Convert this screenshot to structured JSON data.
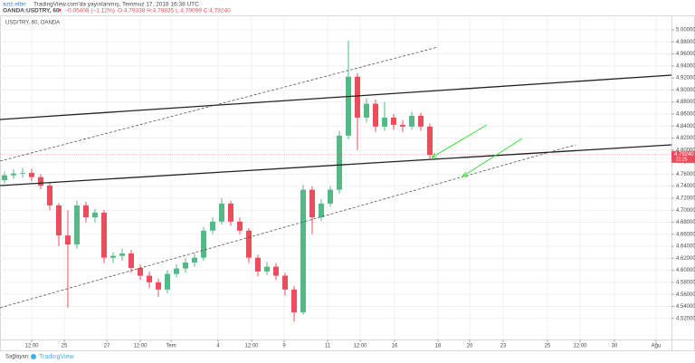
{
  "header": {
    "author": "aziz.elbir",
    "published": "TradingView.com'da yayınlanmış, Temmuz 17, 2018 16:38 UTC",
    "symbol": "OANDA:USDTRY, 60",
    "change": "▼ −0.05408 (−1.12%)",
    "ohlc": "O:4.79338 H:4.79835 L:4.79099 C:4.79240"
  },
  "footer": {
    "provider": "Sağlayan:",
    "brand": "TradingView"
  },
  "chart_data": {
    "type": "candlestick",
    "title": "USD/TRY, 60, OANDA",
    "up_color": "#53b987",
    "down_color": "#eb4d5c",
    "grid": true,
    "x": [
      0.5,
      1.5,
      2.5,
      3.5,
      4.5,
      5.5,
      6.5,
      7.5,
      8.5,
      9.5,
      10.5,
      11.5,
      12.5,
      13.5,
      14.5,
      15.5,
      16.5,
      17.5,
      18.5,
      19.5,
      20.5,
      21.5,
      22.5,
      23.5,
      24.5,
      25.5,
      26.5,
      27.5,
      28.5,
      29.5,
      30.5,
      31.5,
      32.5,
      33.5,
      34.5,
      35.5,
      36.5,
      37.5,
      38.5,
      39.5,
      40.5,
      41.5,
      42.5,
      43.5,
      44.5,
      45.5,
      46.5,
      47.5
    ],
    "open": [
      4.75,
      4.758,
      4.761,
      4.762,
      4.755,
      4.741,
      4.708,
      4.658,
      4.643,
      4.708,
      4.688,
      4.696,
      4.621,
      4.624,
      4.628,
      4.604,
      4.591,
      4.58,
      4.568,
      4.594,
      4.603,
      4.613,
      4.621,
      4.666,
      4.681,
      4.711,
      4.681,
      4.666,
      4.621,
      4.598,
      4.606,
      4.591,
      4.568,
      4.53,
      4.734,
      4.688,
      4.711,
      4.734,
      4.824,
      4.922,
      4.854,
      4.877,
      4.839,
      4.854,
      4.842,
      4.839,
      4.857,
      4.839
    ],
    "high": [
      4.764,
      4.768,
      4.77,
      4.769,
      4.76,
      4.746,
      4.712,
      4.7,
      4.716,
      4.714,
      4.702,
      4.7,
      4.63,
      4.636,
      4.634,
      4.61,
      4.598,
      4.586,
      4.6,
      4.61,
      4.62,
      4.628,
      4.672,
      4.688,
      4.72,
      4.716,
      4.688,
      4.67,
      4.626,
      4.614,
      4.612,
      4.596,
      4.574,
      4.742,
      4.74,
      4.718,
      4.74,
      4.832,
      4.982,
      4.928,
      4.886,
      4.884,
      4.88,
      4.86,
      4.85,
      4.864,
      4.862,
      4.844
    ],
    "low": [
      4.744,
      4.752,
      4.754,
      4.748,
      4.735,
      4.7,
      4.64,
      4.538,
      4.636,
      4.68,
      4.68,
      4.612,
      4.612,
      4.616,
      4.596,
      4.584,
      4.57,
      4.556,
      4.562,
      4.588,
      4.596,
      4.606,
      4.616,
      4.66,
      4.676,
      4.674,
      4.66,
      4.612,
      4.59,
      4.592,
      4.584,
      4.558,
      4.515,
      4.526,
      4.66,
      4.682,
      4.706,
      4.728,
      4.818,
      4.8,
      4.846,
      4.83,
      4.832,
      4.834,
      4.83,
      4.834,
      4.832,
      4.786
    ],
    "close": [
      4.758,
      4.761,
      4.762,
      4.755,
      4.741,
      4.708,
      4.658,
      4.643,
      4.708,
      4.688,
      4.696,
      4.621,
      4.624,
      4.628,
      4.604,
      4.591,
      4.58,
      4.568,
      4.594,
      4.603,
      4.613,
      4.621,
      4.666,
      4.681,
      4.711,
      4.681,
      4.666,
      4.621,
      4.598,
      4.606,
      4.591,
      4.568,
      4.53,
      4.734,
      4.688,
      4.711,
      4.734,
      4.824,
      4.922,
      4.854,
      4.877,
      4.839,
      4.854,
      4.842,
      4.839,
      4.857,
      4.839,
      4.792
    ],
    "last_price": {
      "value": 4.7924,
      "label": "4.79240"
    },
    "countdown": "21:25",
    "xlim": [
      0,
      74.2
    ],
    "xticks": [
      {
        "value": 3.5,
        "label": "12:00"
      },
      {
        "value": 7.1,
        "label": "25"
      },
      {
        "value": 11.8,
        "label": "27"
      },
      {
        "value": 15.5,
        "label": "12:00"
      },
      {
        "value": 18.9,
        "label": "Tem"
      },
      {
        "value": 24.1,
        "label": "4"
      },
      {
        "value": 27.8,
        "label": "12:00"
      },
      {
        "value": 31.4,
        "label": "9"
      },
      {
        "value": 36.2,
        "label": "11"
      },
      {
        "value": 39.8,
        "label": "12:00"
      },
      {
        "value": 43.6,
        "label": "16"
      },
      {
        "value": 48.4,
        "label": "18"
      },
      {
        "value": 51.9,
        "label": "20"
      },
      {
        "value": 55.6,
        "label": "23"
      },
      {
        "value": 60.5,
        "label": "25"
      },
      {
        "value": 64.1,
        "label": "12:00"
      },
      {
        "value": 67.9,
        "label": "30"
      },
      {
        "value": 72.5,
        "label": "Ağu"
      }
    ],
    "ylim": [
      4.485,
      5.024
    ],
    "yticks": [
      {
        "value": 4.52,
        "label": "4.52000"
      },
      {
        "value": 4.54,
        "label": "4.54000"
      },
      {
        "value": 4.56,
        "label": "4.56000"
      },
      {
        "value": 4.58,
        "label": "4.58000"
      },
      {
        "value": 4.6,
        "label": "4.60000"
      },
      {
        "value": 4.62,
        "label": "4.62000"
      },
      {
        "value": 4.64,
        "label": "4.64000"
      },
      {
        "value": 4.66,
        "label": "4.66000"
      },
      {
        "value": 4.68,
        "label": "4.68000"
      },
      {
        "value": 4.7,
        "label": "4.70000"
      },
      {
        "value": 4.72,
        "label": "4.72000"
      },
      {
        "value": 4.74,
        "label": "4.74000"
      },
      {
        "value": 4.76,
        "label": "4.76000"
      },
      {
        "value": 4.78,
        "label": "4.78000"
      },
      {
        "value": 4.8,
        "label": "4.80000"
      },
      {
        "value": 4.82,
        "label": "4.82000"
      },
      {
        "value": 4.84,
        "label": "4.84000"
      },
      {
        "value": 4.86,
        "label": "4.86000"
      },
      {
        "value": 4.88,
        "label": "4.88000"
      },
      {
        "value": 4.9,
        "label": "4.90000"
      },
      {
        "value": 4.92,
        "label": "4.92000"
      },
      {
        "value": 4.94,
        "label": "4.94000"
      },
      {
        "value": 4.96,
        "label": "4.96000"
      },
      {
        "value": 4.98,
        "label": "4.98000"
      },
      {
        "value": 5.0,
        "label": "5.00000"
      }
    ]
  }
}
